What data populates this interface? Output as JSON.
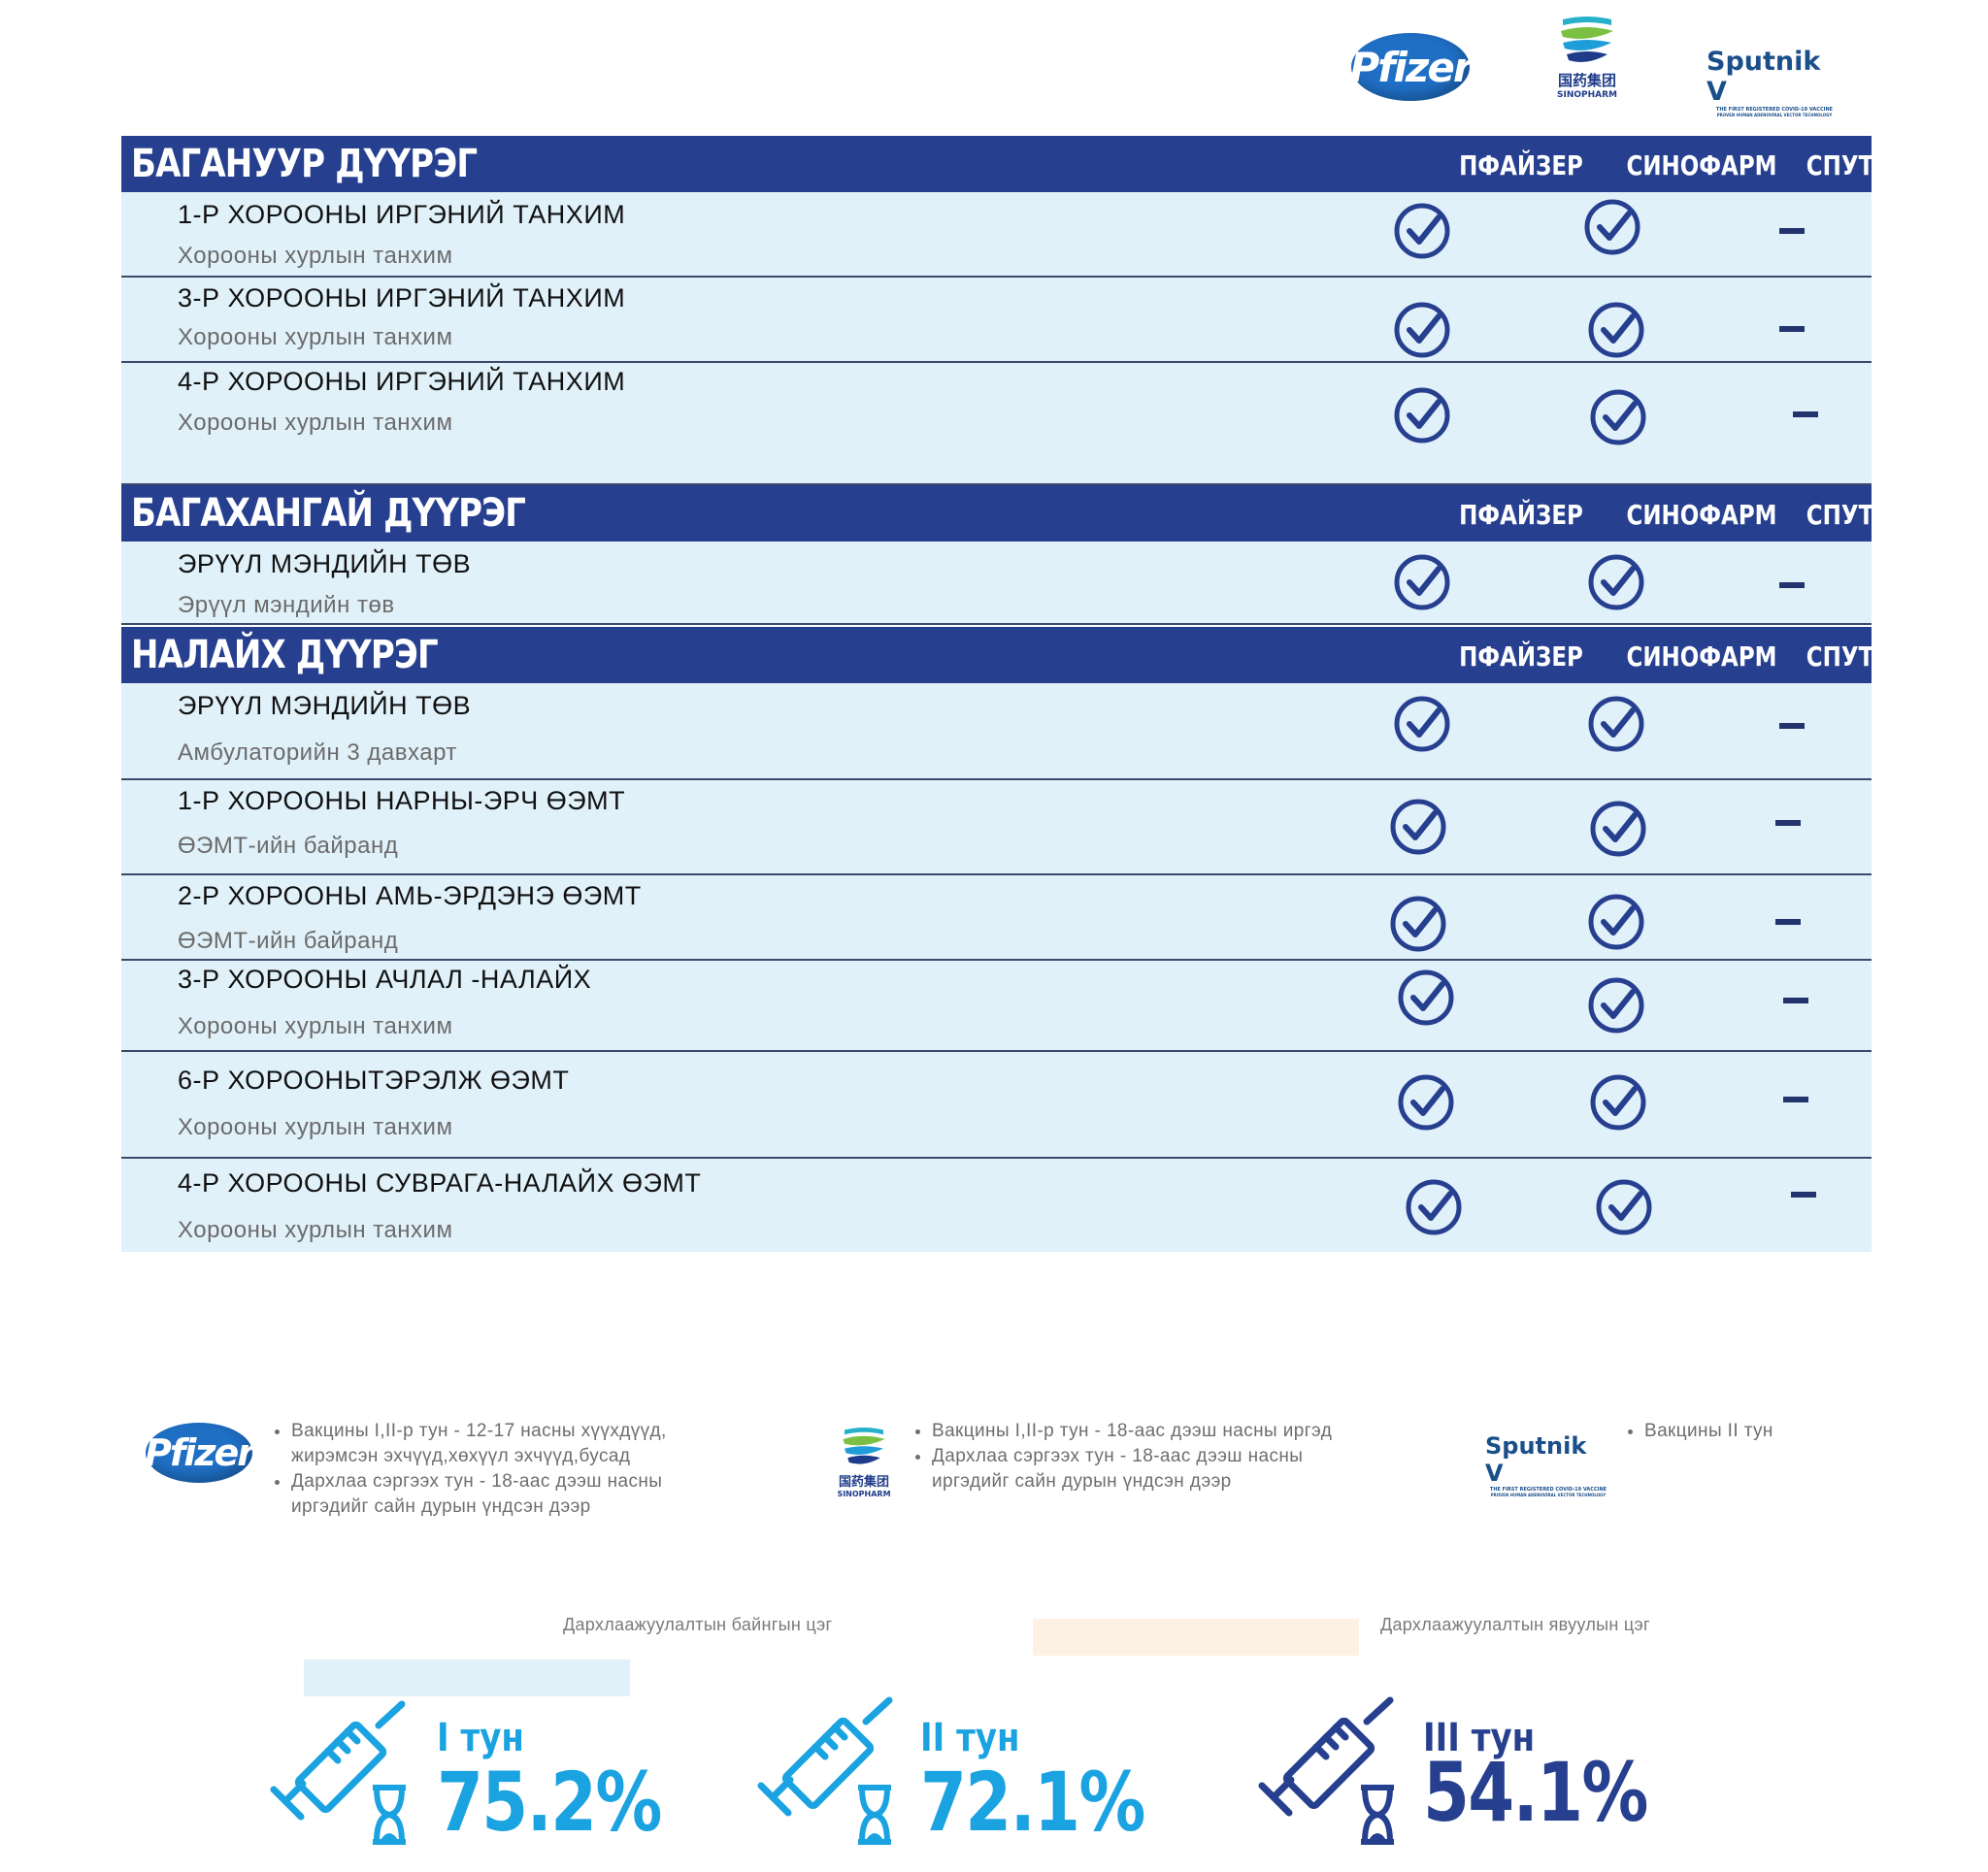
{
  "logos": {
    "pfizer": "Pfizer",
    "sinopharm_cn": "国药集团",
    "sinopharm_en": "SINOPHARM",
    "sputnik_name": "Sputnik V",
    "sputnik_sub1": "THE FIRST REGISTERED COVID-19 VACCINE",
    "sputnik_sub2": "PROVEN HUMAN ADENOVIRAL VECTOR TECHNOLOGY"
  },
  "columns": [
    "ПФАЙЗЕР",
    "СИНОФАРМ",
    "СПУТНИК V"
  ],
  "sections": [
    {
      "title": "БАГАНУУР ДҮҮРЭГ",
      "rows": [
        {
          "name": "1-Р ХОРООНЫ ИРГЭНИЙ ТАНХИМ",
          "place": "Хорооны хурлын танхим",
          "pfizer": "check",
          "sinopharm": "check",
          "sputnik": "dash"
        },
        {
          "name": "3-Р ХОРООНЫ ИРГЭНИЙ ТАНХИМ",
          "place": "Хорооны хурлын  танхим",
          "pfizer": "check",
          "sinopharm": "check",
          "sputnik": "dash"
        },
        {
          "name": "4-Р ХОРООНЫ ИРГЭНИЙ ТАНХИМ",
          "place": "Хорооны хурлын танхим",
          "pfizer": "check",
          "sinopharm": "check",
          "sputnik": "dash"
        }
      ]
    },
    {
      "title": "БАГАХАНГАЙ ДҮҮРЭГ",
      "rows": [
        {
          "name": "ЭРҮҮЛ МЭНДИЙН ТӨВ",
          "place": "Эрүүл мэндийн төв",
          "pfizer": "check",
          "sinopharm": "check",
          "sputnik": "dash"
        }
      ]
    },
    {
      "title": "НАЛАЙХ ДҮҮРЭГ",
      "rows": [
        {
          "name": "ЭРҮҮЛ МЭНДИЙН ТӨВ",
          "place": "Амбулаторийн 3 давхарт",
          "pfizer": "check",
          "sinopharm": "check",
          "sputnik": "dash"
        },
        {
          "name": "1-Р ХОРООНЫ НАРНЫ-ЭРЧ ӨЭМТ",
          "place": "ӨЭМТ-ийн байранд",
          "pfizer": "check",
          "sinopharm": "check",
          "sputnik": "dash"
        },
        {
          "name": "2-Р ХОРООНЫ АМЬ-ЭРДЭНЭ ӨЭМТ",
          "place": "ӨЭМТ-ийн байранд",
          "pfizer": "check",
          "sinopharm": "check",
          "sputnik": "dash"
        },
        {
          "name": "3-Р ХОРООНЫ АЧЛАЛ -НАЛАЙХ",
          "place": "Хорооны хурлын танхим",
          "pfizer": "check",
          "sinopharm": "check",
          "sputnik": "dash"
        },
        {
          "name": "6-Р ХОРООНЫТЭРЭЛЖ ӨЭМТ",
          "place": "Хорооны хурлын  танхим",
          "pfizer": "check",
          "sinopharm": "check",
          "sputnik": "dash"
        },
        {
          "name": "4-Р ХОРООНЫ СУВРАГА-НАЛАЙХ ӨЭМТ",
          "place": "Хорооны хурлын танхим",
          "pfizer": "check",
          "sinopharm": "check",
          "sputnik": "dash"
        }
      ]
    }
  ],
  "legend": {
    "pfizer": [
      "Вакцины I,II-р тун - 12-17 насны хүүхдүүд, жирэмсэн эхчүүд,хөхүүл эхчүүд,бусад",
      "Дархлаа сэргээх тун - 18-аас дээш насны иргэдийг сайн дурын үндсэн дээр"
    ],
    "sinopharm": [
      "Вакцины I,II-р тун - 18-аас дээш насны иргэд",
      "Дархлаа сэргээх тун - 18-аас дээш насны иргэдийг сайн дурын үндсэн дээр"
    ],
    "sputnik": [
      "Вакцины II тун"
    ]
  },
  "key": {
    "fixed": "Дархлаажуулалтын байнгын цэг",
    "mobile": "Дархлаажуулалтын явуулын цэг",
    "fixed_color": "#e1f1fa",
    "mobile_color": "#fdf1e4"
  },
  "doses": [
    {
      "label": "I тун",
      "percent": "75.2%",
      "value": 75.2,
      "color": "#1aa3e0"
    },
    {
      "label": "II тун",
      "percent": "72.1%",
      "value": 72.1,
      "color": "#1aa3e0"
    },
    {
      "label": "III тун",
      "percent": "54.1%",
      "value": 54.1,
      "color": "#263f8f"
    }
  ],
  "colors": {
    "header_bg": "#263f8f",
    "row_bg": "#e1f1fa",
    "check": "#263f8f",
    "accent": "#1aa3e0"
  }
}
